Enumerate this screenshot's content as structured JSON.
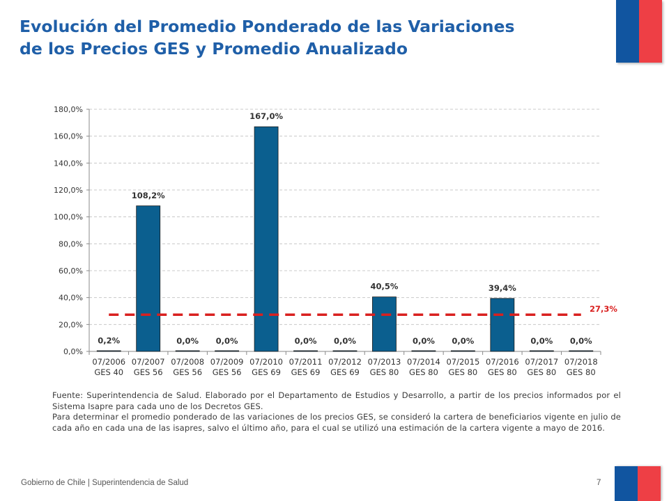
{
  "slide": {
    "title_line1": "Evolución del Promedio Ponderado de las Variaciones",
    "title_line2": "de los Precios GES y Promedio Anualizado",
    "source_line1": "Fuente: Superintendencia de Salud. Elaborado por el Departamento de Estudios y Desarrollo, a partir de los precios informados por el Sistema Isapre para cada uno de los Decretos GES.",
    "source_line2": "Para determinar el promedio ponderado de las variaciones de los precios GES, se consideró la cartera de beneficiarios vigente en julio de cada año en cada una de las isapres, salvo el último año, para el cual se utilizó una estimación de la cartera vigente a mayo de 2016.",
    "footer_org": "Gobierno de Chile | Superintendencia de Salud",
    "page_number": "7"
  },
  "colors": {
    "title": "#1f5fa8",
    "bar": "#0b5f8f",
    "average_line": "#d9201f",
    "flag_blue": "#1155a0",
    "flag_red": "#ee3f45"
  },
  "chart_data": {
    "type": "bar",
    "categories": [
      [
        "07/2006",
        "GES 40"
      ],
      [
        "07/2007",
        "GES 56"
      ],
      [
        "07/2008",
        "GES 56"
      ],
      [
        "07/2009",
        "GES 56"
      ],
      [
        "07/2010",
        "GES 69"
      ],
      [
        "07/2011",
        "GES 69"
      ],
      [
        "07/2012",
        "GES 69"
      ],
      [
        "07/2013",
        "GES 80"
      ],
      [
        "07/2014",
        "GES 80"
      ],
      [
        "07/2015",
        "GES 80"
      ],
      [
        "07/2016",
        "GES 80"
      ],
      [
        "07/2017",
        "GES 80"
      ],
      [
        "07/2018",
        "GES 80"
      ]
    ],
    "values": [
      0.2,
      108.2,
      0.0,
      0.0,
      167.0,
      0.0,
      0.0,
      40.5,
      0.0,
      0.0,
      39.4,
      0.0,
      0.0
    ],
    "data_labels": [
      "0,2%",
      "108,2%",
      "0,0%",
      "0,0%",
      "167,0%",
      "0,0%",
      "0,0%",
      "40,5%",
      "0,0%",
      "0,0%",
      "39,4%",
      "0,0%",
      "0,0%"
    ],
    "average": {
      "value": 27.3,
      "label": "27,3%"
    },
    "ylim": [
      0,
      180
    ],
    "yticks": [
      0,
      20,
      40,
      60,
      80,
      100,
      120,
      140,
      160,
      180
    ],
    "ytick_labels": [
      "0,0%",
      "20,0%",
      "40,0%",
      "60,0%",
      "80,0%",
      "100,0%",
      "120,0%",
      "140,0%",
      "160,0%",
      "180,0%"
    ],
    "title": "",
    "xlabel": "",
    "ylabel": "",
    "grid": true
  }
}
